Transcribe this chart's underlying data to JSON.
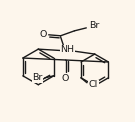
{
  "bg_color": "#fdf6ec",
  "bond_color": "#1a1a1a",
  "figsize": [
    1.35,
    1.22
  ],
  "dpi": 100,
  "xlim": [
    0,
    135
  ],
  "ylim": [
    0,
    122
  ]
}
